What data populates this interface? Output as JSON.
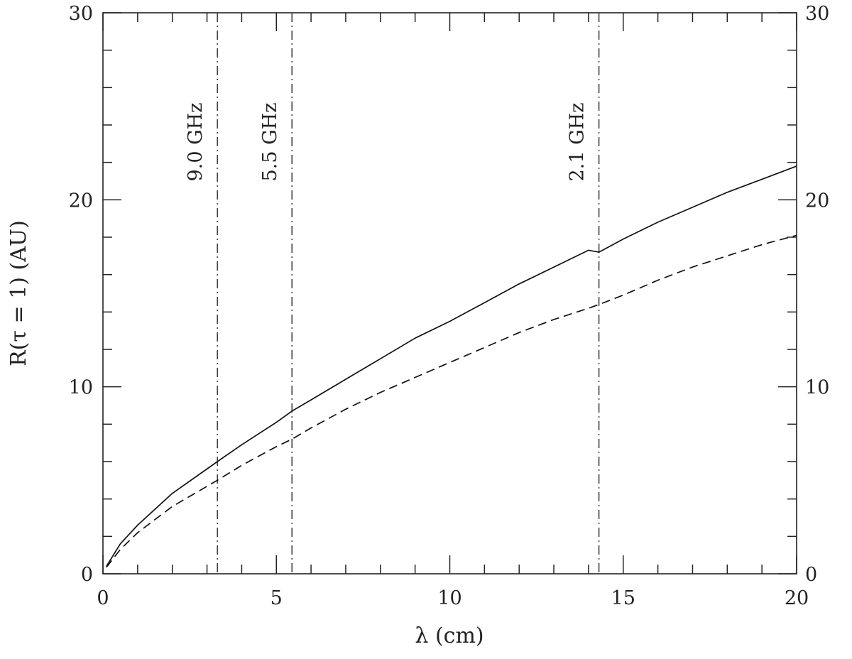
{
  "chart_data": {
    "type": "line",
    "title": "",
    "xlabel": "λ (cm)",
    "ylabel": "R(τ = 1) (AU)",
    "xlim": [
      0,
      20
    ],
    "ylim": [
      0,
      30
    ],
    "x_ticks": [
      "0",
      "5",
      "10",
      "15",
      "20"
    ],
    "y_ticks": [
      "0",
      "10",
      "20",
      "30"
    ],
    "grid": false,
    "series": [
      {
        "style": "solid",
        "x": [
          0.1,
          0.5,
          1,
          2,
          3.3,
          4,
          5,
          5.45,
          6,
          7,
          8,
          9,
          10,
          11,
          12,
          13,
          14,
          14.3,
          15,
          16,
          17,
          18,
          19,
          20
        ],
        "y": [
          0.4,
          1.6,
          2.6,
          4.3,
          6.0,
          6.9,
          8.1,
          8.7,
          9.3,
          10.4,
          11.5,
          12.6,
          13.5,
          14.5,
          15.5,
          16.4,
          17.3,
          17.2,
          17.9,
          18.8,
          19.6,
          20.4,
          21.1,
          21.8
        ]
      },
      {
        "style": "dashed",
        "x": [
          0.1,
          0.5,
          1,
          2,
          3.3,
          4,
          5,
          5.45,
          6,
          7,
          8,
          9,
          10,
          11,
          12,
          13,
          14,
          14.3,
          15,
          16,
          17,
          18,
          19,
          20
        ],
        "y": [
          0.35,
          1.3,
          2.2,
          3.6,
          5.0,
          5.8,
          6.8,
          7.2,
          7.8,
          8.8,
          9.7,
          10.5,
          11.3,
          12.1,
          12.9,
          13.6,
          14.2,
          14.4,
          14.9,
          15.7,
          16.4,
          17.0,
          17.6,
          18.1
        ]
      }
    ],
    "vlines": [
      {
        "x": 3.3,
        "label": "9.0 GHz",
        "style": "dash-dot"
      },
      {
        "x": 5.45,
        "label": "5.5 GHz",
        "style": "dash-dot"
      },
      {
        "x": 14.3,
        "label": "2.1 GHz",
        "style": "dash-dot"
      }
    ]
  }
}
